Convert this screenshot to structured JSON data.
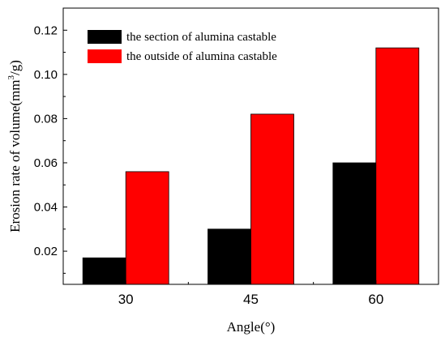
{
  "chart_data": {
    "type": "bar",
    "categories": [
      "30",
      "45",
      "60"
    ],
    "series": [
      {
        "name": "the section of alumina castable",
        "values": [
          0.017,
          0.03,
          0.06
        ],
        "color": "#000000"
      },
      {
        "name": "the outside of alumina castable",
        "values": [
          0.056,
          0.082,
          0.112
        ],
        "color": "#ff0000"
      }
    ],
    "xlabel": "Angle(°)",
    "ylabel_main": "Erosion rate of volume(mm",
    "ylabel_sup": "3",
    "ylabel_tail": "/g)",
    "ylim": [
      0.005,
      0.13
    ],
    "yticks": [
      0.02,
      0.04,
      0.06,
      0.08,
      0.1,
      0.12
    ],
    "ytick_labels": [
      "0.02",
      "0.04",
      "0.06",
      "0.08",
      "0.10",
      "0.12"
    ],
    "legend_position": "top-left",
    "grid": false
  }
}
